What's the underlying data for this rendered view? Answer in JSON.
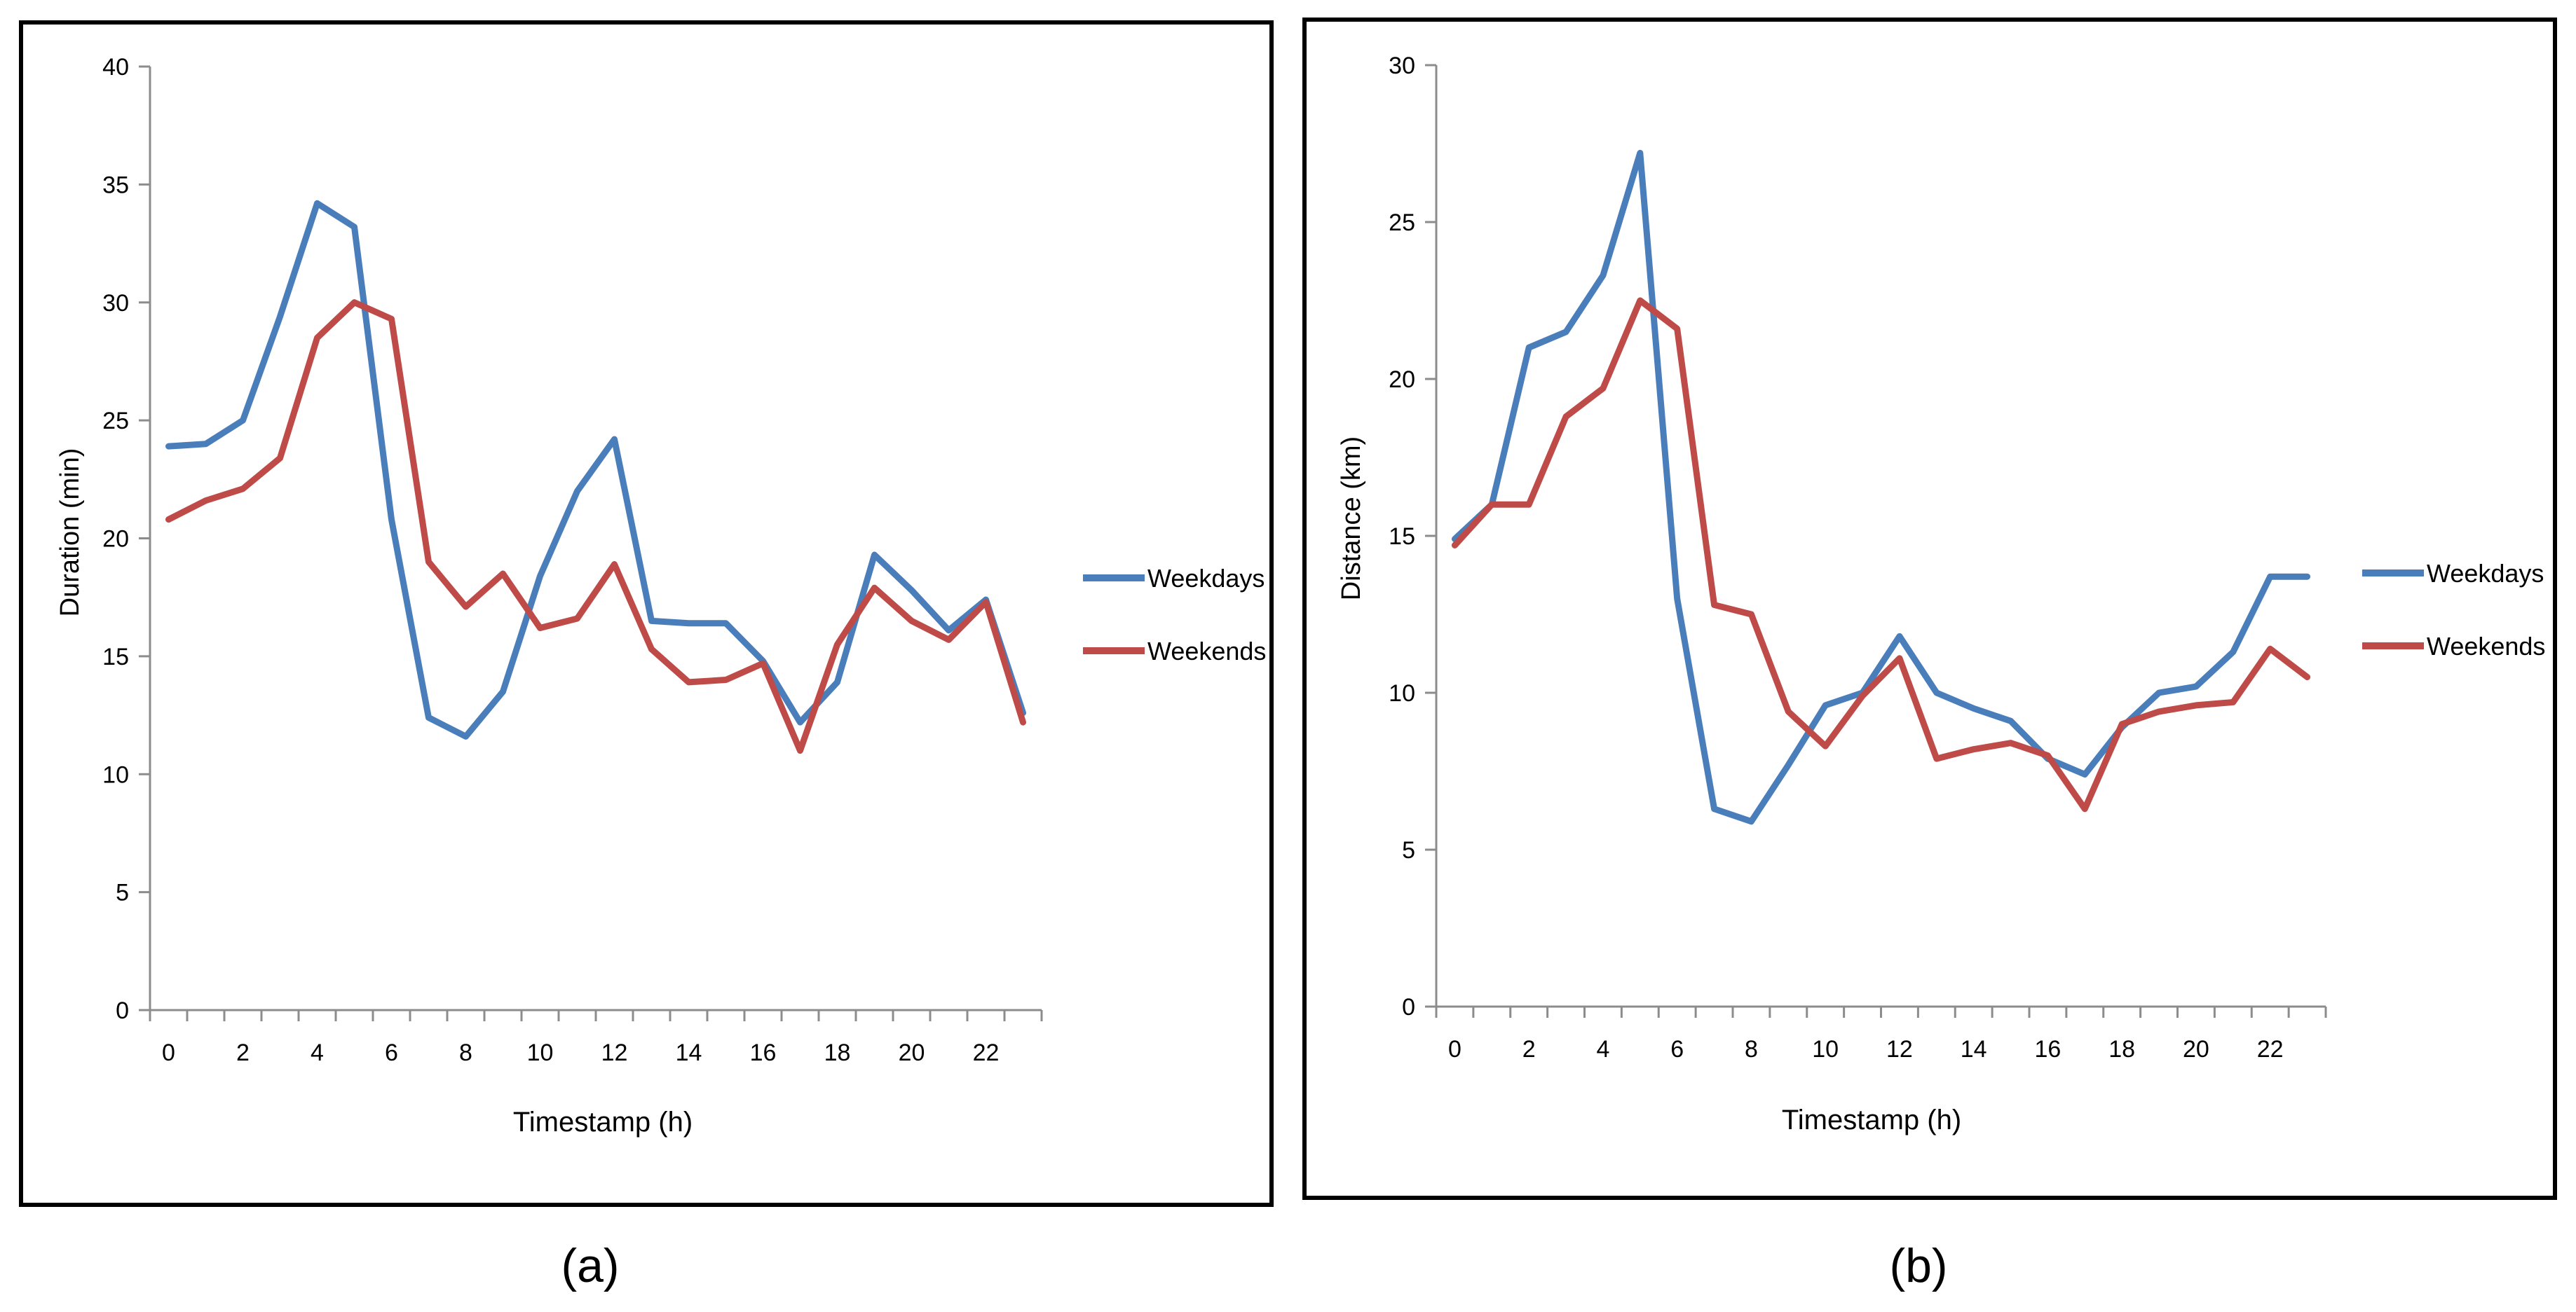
{
  "chart_data": [
    {
      "type": "line",
      "panel_label": "(a)",
      "title": "",
      "xlabel": "Timestamp (h)",
      "ylabel": "Duration (min)",
      "x": [
        0,
        1,
        2,
        3,
        4,
        5,
        6,
        7,
        8,
        9,
        10,
        11,
        12,
        13,
        14,
        15,
        16,
        17,
        18,
        19,
        20,
        21,
        22,
        23
      ],
      "xticks": [
        "0",
        "2",
        "4",
        "6",
        "8",
        "10",
        "12",
        "14",
        "16",
        "18",
        "20",
        "22"
      ],
      "xtick_values": [
        0,
        2,
        4,
        6,
        8,
        10,
        12,
        14,
        16,
        18,
        20,
        22
      ],
      "yticks": [
        "0",
        "5",
        "10",
        "15",
        "20",
        "25",
        "30",
        "35",
        "40"
      ],
      "ylim": [
        0,
        40
      ],
      "xlim": [
        -0.5,
        23.5
      ],
      "legend_position": "right",
      "series": [
        {
          "name": "Weekdays",
          "color": "#4a7ebb",
          "values": [
            23.9,
            24.0,
            25.0,
            29.4,
            34.2,
            33.2,
            20.8,
            12.4,
            11.6,
            13.5,
            18.4,
            22.0,
            24.2,
            16.5,
            16.4,
            16.4,
            14.8,
            12.2,
            13.9,
            19.3,
            17.8,
            16.1,
            17.4,
            12.6
          ]
        },
        {
          "name": "Weekends",
          "color": "#be4b48",
          "values": [
            20.8,
            21.6,
            22.1,
            23.4,
            28.5,
            30.0,
            29.3,
            19.0,
            17.1,
            18.5,
            16.2,
            16.6,
            18.9,
            15.3,
            13.9,
            14.0,
            14.7,
            11.0,
            15.5,
            17.9,
            16.5,
            15.7,
            17.3,
            12.2
          ]
        }
      ]
    },
    {
      "type": "line",
      "panel_label": "(b)",
      "title": "",
      "xlabel": "Timestamp (h)",
      "ylabel": "Distance (km)",
      "x": [
        0,
        1,
        2,
        3,
        4,
        5,
        6,
        7,
        8,
        9,
        10,
        11,
        12,
        13,
        14,
        15,
        16,
        17,
        18,
        19,
        20,
        21,
        22,
        23
      ],
      "xticks": [
        "0",
        "2",
        "4",
        "6",
        "8",
        "10",
        "12",
        "14",
        "16",
        "18",
        "20",
        "22"
      ],
      "xtick_values": [
        0,
        2,
        4,
        6,
        8,
        10,
        12,
        14,
        16,
        18,
        20,
        22
      ],
      "yticks": [
        "0",
        "5",
        "10",
        "15",
        "20",
        "25",
        "30"
      ],
      "ylim": [
        0,
        30
      ],
      "xlim": [
        -0.5,
        23.5
      ],
      "legend_position": "right",
      "series": [
        {
          "name": "Weekdays",
          "color": "#4a7ebb",
          "values": [
            14.9,
            16.0,
            21.0,
            21.5,
            23.3,
            27.2,
            13.0,
            6.3,
            5.9,
            7.7,
            9.6,
            10.0,
            11.8,
            10.0,
            9.5,
            9.1,
            7.9,
            7.4,
            8.9,
            10.0,
            10.2,
            11.3,
            13.7,
            13.7
          ]
        },
        {
          "name": "Weekends",
          "color": "#be4b48",
          "values": [
            14.7,
            16.0,
            16.0,
            18.8,
            19.7,
            22.5,
            21.6,
            12.8,
            12.5,
            9.4,
            8.3,
            9.9,
            11.1,
            7.9,
            8.2,
            8.4,
            8.0,
            6.3,
            9.0,
            9.4,
            9.6,
            9.7,
            11.4,
            10.5
          ]
        }
      ]
    }
  ]
}
